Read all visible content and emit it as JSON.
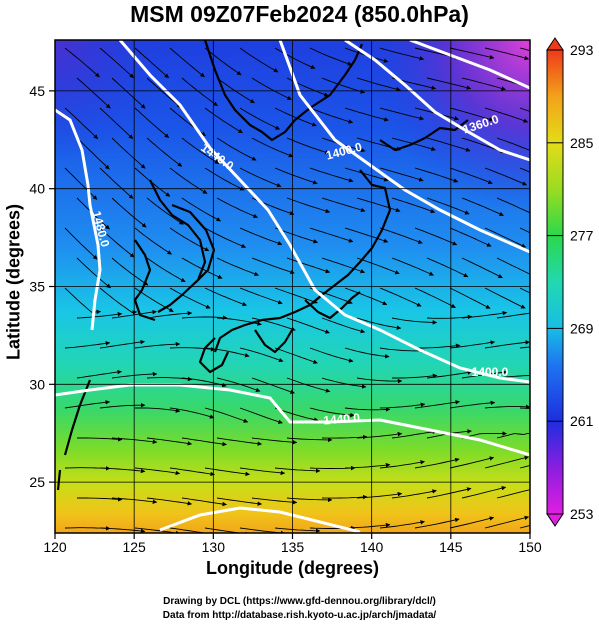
{
  "title": "MSM 09Z07Feb2024 (850.0hPa)",
  "xaxis": {
    "label": "Longitude (degrees)",
    "min": 120,
    "max": 150,
    "ticks": [
      "120",
      "125",
      "130",
      "135",
      "140",
      "145",
      "150"
    ]
  },
  "yaxis": {
    "label": "Latitude  (degrees)",
    "min": 22.4,
    "max": 47.6,
    "ticks": [
      "25",
      "30",
      "35",
      "40",
      "45"
    ]
  },
  "colorbar": {
    "min": 253,
    "max": 293,
    "ticks": [
      "253",
      "261",
      "269",
      "277",
      "285",
      "293"
    ]
  },
  "contours": [
    "1480.0",
    "1440.0",
    "1400.0",
    "1360.0",
    "1400.0",
    "1440.0",
    "1480.0"
  ],
  "credits": {
    "line1": "Drawing by DCL (https://www.gfd-dennou.org/library/dcl/)",
    "line2": "Data from http://database.rish.kyoto-u.ac.jp/arch/jmadata/"
  },
  "colors": {
    "map_border": "#000000",
    "contour": "#ffffff",
    "streamline": "#000000"
  }
}
